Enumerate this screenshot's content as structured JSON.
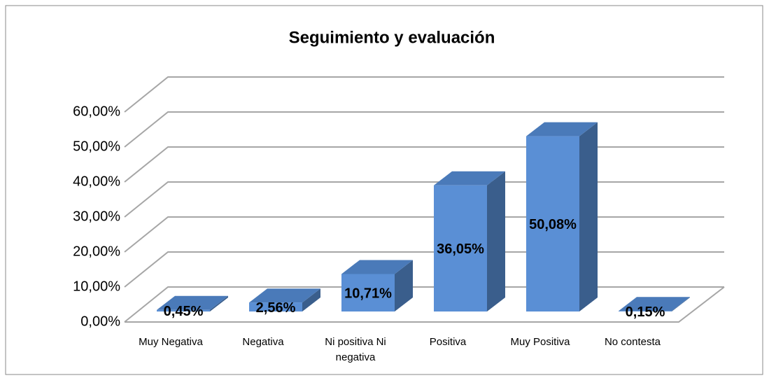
{
  "chart_data": {
    "type": "bar3d",
    "title": "Seguimiento y evaluación",
    "categories": [
      "Muy Negativa",
      "Negativa",
      "Ni positiva Ni negativa",
      "Positiva",
      "Muy Positiva",
      "No contesta"
    ],
    "values": [
      0.45,
      2.56,
      10.71,
      36.05,
      50.08,
      0.15
    ],
    "value_labels": [
      "0,45%",
      "2,56%",
      "10,71%",
      "36,05%",
      "50,08%",
      "0,15%"
    ],
    "color": "#5a8fd5",
    "ylim": [
      0,
      60
    ],
    "yticks": [
      {
        "value": 0,
        "label": "0,00%"
      },
      {
        "value": 10,
        "label": "10,00%"
      },
      {
        "value": 20,
        "label": "20,00%"
      },
      {
        "value": 30,
        "label": "30,00%"
      },
      {
        "value": 40,
        "label": "40,00%"
      },
      {
        "value": 50,
        "label": "50,00%"
      },
      {
        "value": 60,
        "label": "60,00%"
      }
    ],
    "grid": true
  }
}
